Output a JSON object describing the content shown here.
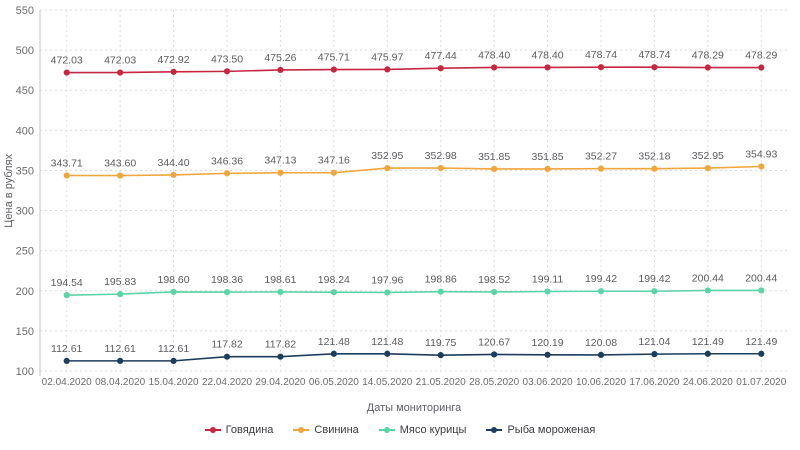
{
  "chart_data": {
    "type": "line",
    "title": "",
    "xlabel": "Даты мониторинга",
    "ylabel": "Цена в рублях",
    "ylim": [
      100,
      550
    ],
    "ytick_step": 50,
    "yticks": [
      100,
      150,
      200,
      250,
      300,
      350,
      400,
      450,
      500,
      550
    ],
    "grid": true,
    "grid_style": "dashed",
    "legend_position": "bottom",
    "background_color": "#ffffff",
    "grid_color": "#dcdcdc",
    "axis_line_color": "#c4c4c4",
    "tick_label_color": "#6d6d6d",
    "data_label_color": "#5b5b5f",
    "categories": [
      "02.04.2020",
      "08.04.2020",
      "15.04.2020",
      "22.04.2020",
      "29.04.2020",
      "06.05.2020",
      "14.05.2020",
      "21.05.2020",
      "28.05.2020",
      "03.06.2020",
      "10.06.2020",
      "17.06.2020",
      "24.06.2020",
      "01.07.2020"
    ],
    "series": [
      {
        "name": "Говядина",
        "color": "#c52741",
        "values": [
          472.03,
          472.03,
          472.92,
          473.5,
          475.26,
          475.71,
          475.97,
          477.44,
          478.4,
          478.4,
          478.74,
          478.74,
          478.29,
          478.29
        ]
      },
      {
        "name": "Свинина",
        "color": "#efa63c",
        "values": [
          343.71,
          343.6,
          344.4,
          346.36,
          347.13,
          347.16,
          352.95,
          352.98,
          351.85,
          351.85,
          352.27,
          352.18,
          352.95,
          354.93
        ]
      },
      {
        "name": "Мясо курицы",
        "color": "#5bd4a7",
        "values": [
          194.54,
          195.83,
          198.6,
          198.36,
          198.61,
          198.24,
          197.96,
          198.86,
          198.52,
          199.11,
          199.42,
          199.42,
          200.44,
          200.44
        ]
      },
      {
        "name": "Рыба мороженая",
        "color": "#1d3d5c",
        "values": [
          112.61,
          112.61,
          112.61,
          117.82,
          117.82,
          121.48,
          121.48,
          119.75,
          120.67,
          120.19,
          120.08,
          121.04,
          121.49,
          121.49
        ]
      }
    ]
  }
}
